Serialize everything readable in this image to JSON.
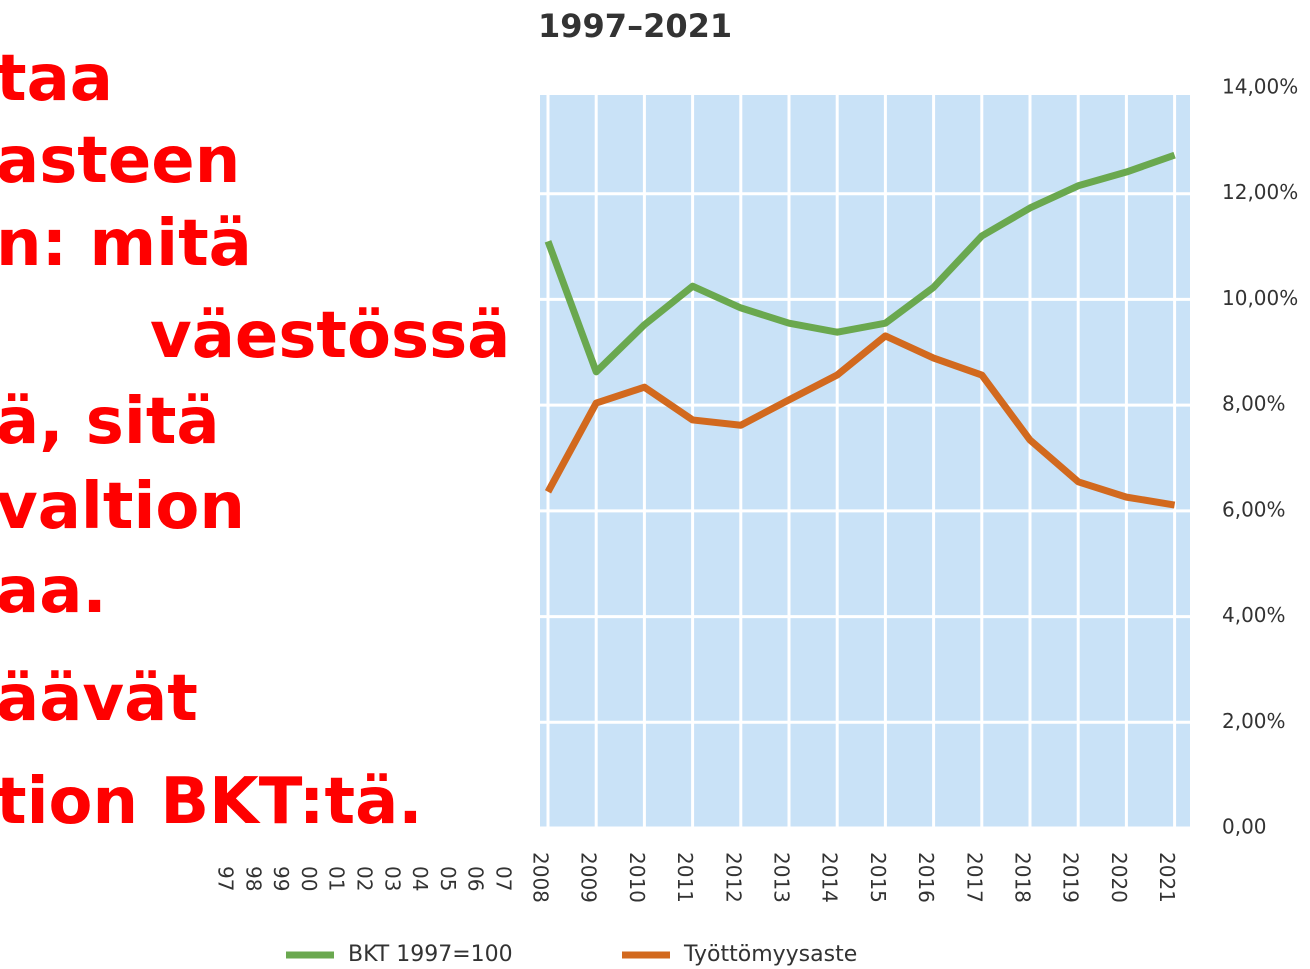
{
  "chart_data": {
    "type": "line",
    "title": "1997–2021",
    "categories": [
      "2008",
      "2009",
      "2010",
      "2011",
      "2012",
      "2013",
      "2014",
      "2015",
      "2016",
      "2017",
      "2018",
      "2019",
      "2020",
      "2021"
    ],
    "extra_x_labels": [
      "97",
      "98",
      "99",
      "00",
      "01",
      "02",
      "03",
      "04",
      "05",
      "06",
      "07"
    ],
    "series": [
      {
        "name": "BKT 1997=100",
        "color": "#6aa84f",
        "values": [
          11.1,
          8.63,
          9.52,
          10.25,
          9.84,
          9.55,
          9.38,
          9.55,
          10.23,
          11.2,
          11.73,
          12.15,
          12.41,
          12.73
        ]
      },
      {
        "name": "Työttömyysaste",
        "color": "#d2691e",
        "values": [
          6.36,
          8.04,
          8.34,
          7.72,
          7.62,
          8.1,
          8.57,
          9.31,
          8.89,
          8.57,
          7.34,
          6.55,
          6.26,
          6.11
        ]
      }
    ],
    "ylim": [
      0,
      14
    ],
    "yticks": [
      {
        "value": 0,
        "label": "0,00"
      },
      {
        "value": 2,
        "label": "2,00%"
      },
      {
        "value": 4,
        "label": "4,00%"
      },
      {
        "value": 6,
        "label": "6,00%"
      },
      {
        "value": 8,
        "label": "8,00%"
      },
      {
        "value": 10,
        "label": "10,00%"
      },
      {
        "value": 12,
        "label": "12,00%"
      },
      {
        "value": 14,
        "label": "14,00%"
      }
    ],
    "grid": true,
    "background": "#c9e2f7"
  },
  "overlay_text": [
    "taa",
    "asteen",
    "n: mitä",
    "väestössä",
    "ä, sitä",
    "valtion",
    "aa.",
    "äävät",
    "tion BKT:tä."
  ]
}
